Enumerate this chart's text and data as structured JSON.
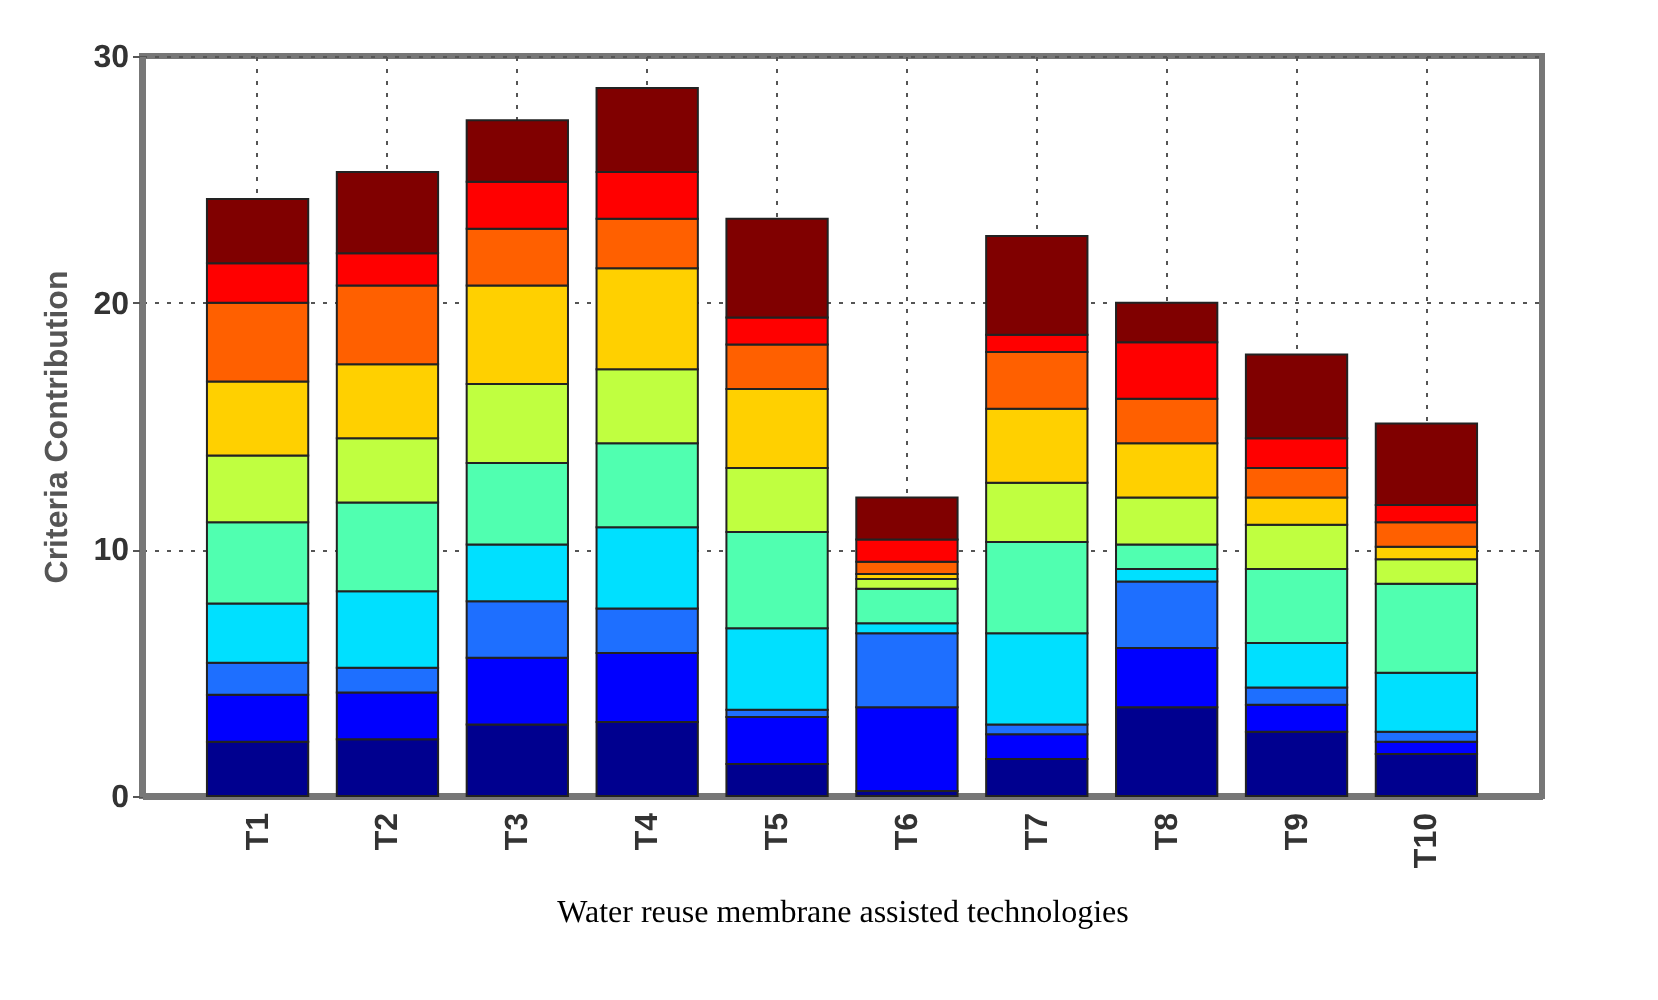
{
  "chart_data": {
    "type": "bar",
    "stacked": true,
    "xlabel": "Water reuse membrane assisted technologies",
    "ylabel": "Criteria Contribution",
    "categories": [
      "T1",
      "T2",
      "T3",
      "T4",
      "T5",
      "T6",
      "T7",
      "T8",
      "T9",
      "T10"
    ],
    "ylim": [
      0,
      30
    ],
    "yticks": [
      0,
      10,
      20,
      30
    ],
    "grid": true,
    "series": [
      {
        "color": "#00008f",
        "values": [
          2.2,
          2.3,
          2.9,
          3.0,
          1.3,
          0.2,
          1.5,
          3.6,
          2.6,
          1.7
        ]
      },
      {
        "color": "#0000ff",
        "values": [
          1.9,
          1.9,
          2.7,
          2.8,
          1.9,
          3.4,
          1.0,
          2.4,
          1.1,
          0.5
        ]
      },
      {
        "color": "#1e6fff",
        "values": [
          1.3,
          1.0,
          2.3,
          1.8,
          0.3,
          3.0,
          0.4,
          2.7,
          0.7,
          0.4
        ]
      },
      {
        "color": "#00e0ff",
        "values": [
          2.4,
          3.1,
          2.3,
          3.3,
          3.3,
          0.4,
          3.7,
          0.5,
          1.8,
          2.4
        ]
      },
      {
        "color": "#50ffb0",
        "values": [
          3.3,
          3.6,
          3.3,
          3.4,
          3.9,
          1.4,
          3.7,
          1.0,
          3.0,
          3.6
        ]
      },
      {
        "color": "#c0ff40",
        "values": [
          2.7,
          2.6,
          3.2,
          3.0,
          2.6,
          0.4,
          2.4,
          1.9,
          1.8,
          1.0
        ]
      },
      {
        "color": "#ffd000",
        "values": [
          3.0,
          3.0,
          4.0,
          4.1,
          3.2,
          0.2,
          3.0,
          2.2,
          1.1,
          0.5
        ]
      },
      {
        "color": "#ff6000",
        "values": [
          3.2,
          3.2,
          2.3,
          2.0,
          1.8,
          0.5,
          2.3,
          1.8,
          1.2,
          1.0
        ]
      },
      {
        "color": "#ff0000",
        "values": [
          1.6,
          1.3,
          1.9,
          1.9,
          1.1,
          0.9,
          0.7,
          2.3,
          1.2,
          0.7
        ]
      },
      {
        "color": "#800000",
        "values": [
          2.6,
          3.3,
          2.5,
          3.4,
          4.0,
          1.7,
          4.0,
          1.6,
          3.4,
          3.3
        ]
      }
    ]
  }
}
